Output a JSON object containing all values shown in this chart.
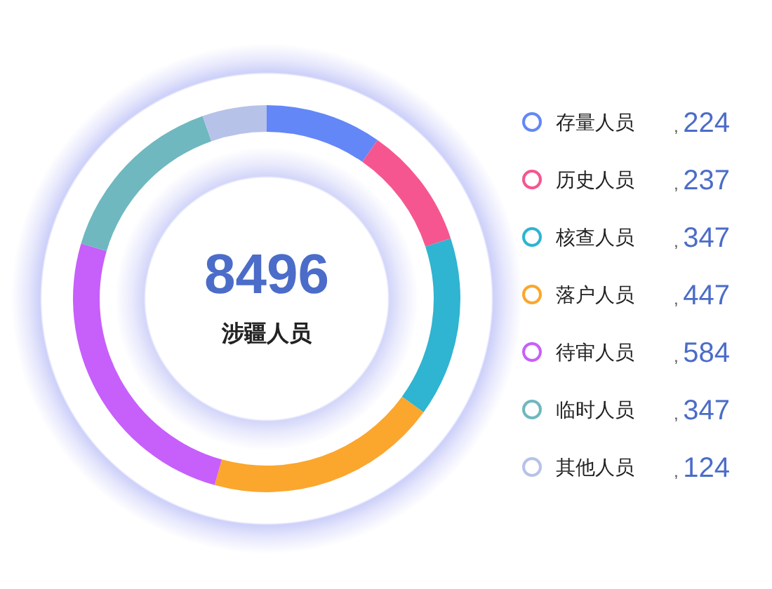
{
  "chart_data": {
    "type": "donut",
    "title": "8496",
    "subtitle": "涉疆人员",
    "categories": [
      "存量人员",
      "历史人员",
      "核查人员",
      "落户人员",
      "待审人员",
      "临时人员",
      "其他人员"
    ],
    "values": [
      224,
      237,
      347,
      447,
      584,
      347,
      124
    ],
    "colors": [
      "#6387f7",
      "#f6568f",
      "#2fb4d1",
      "#fba62d",
      "#c75ffb",
      "#6fb8bf",
      "#b7c2e8"
    ],
    "value_labels": [
      ", 224",
      ", 237",
      ", 347",
      ", 447",
      ", 584",
      ", 347",
      ", 124"
    ],
    "legend": "right"
  }
}
